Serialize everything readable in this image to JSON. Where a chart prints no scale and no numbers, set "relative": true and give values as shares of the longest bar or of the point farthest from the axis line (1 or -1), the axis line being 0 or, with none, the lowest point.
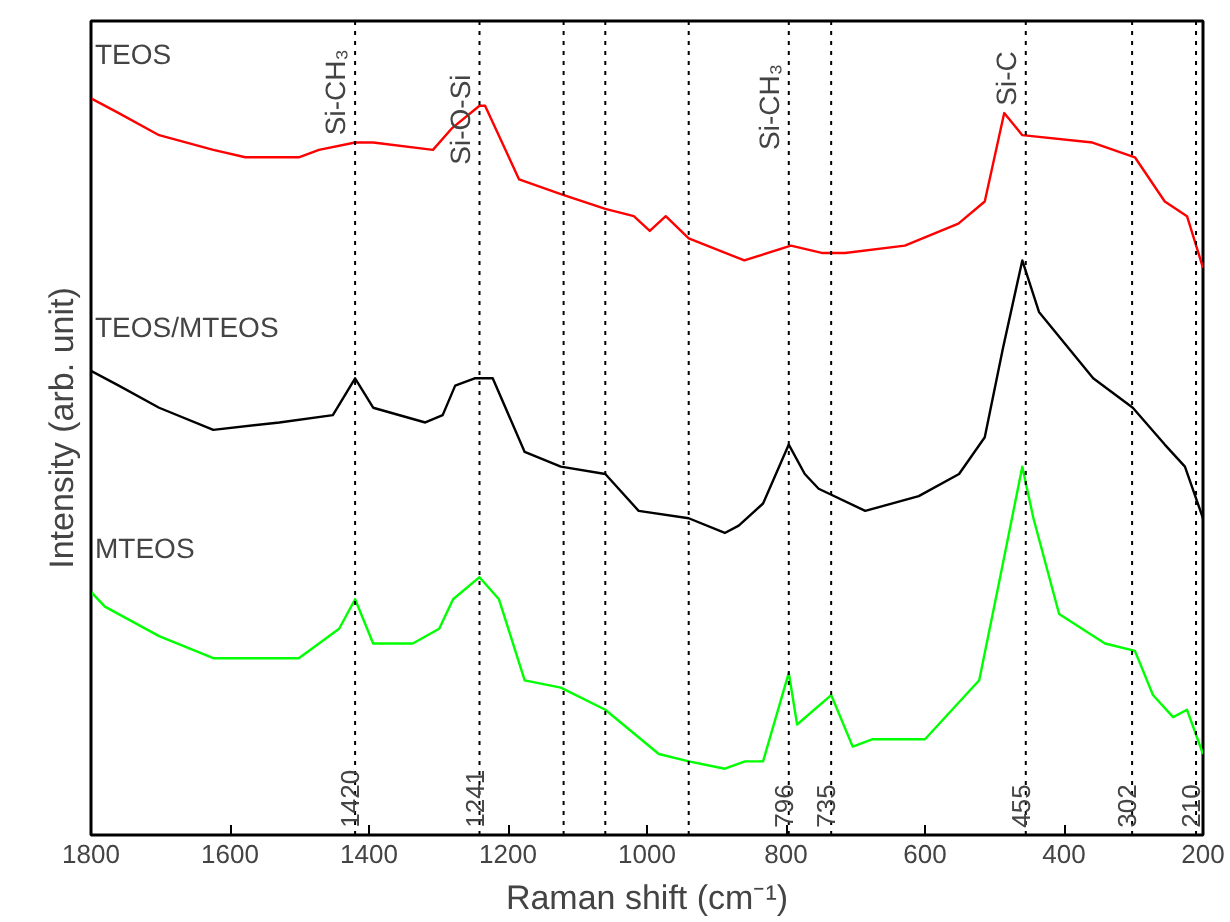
{
  "chart_data": {
    "type": "line",
    "relative": true,
    "xlabel": "Raman shift (cm⁻¹)",
    "ylabel": "Intensity (arb. unit)",
    "xlim": [
      1800,
      200
    ],
    "xticks": [
      1800,
      1600,
      1400,
      1200,
      1000,
      800,
      600,
      400,
      200
    ],
    "grid": false,
    "series": [
      {
        "name": "TEOS",
        "color": "#ff0000",
        "x": [
          1800,
          1760,
          1702,
          1624,
          1578,
          1501,
          1472,
          1420,
          1394,
          1308,
          1280,
          1241,
          1233,
          1184,
          1124,
          1060,
          1019,
          996,
          973,
          940,
          860,
          793,
          747,
          715,
          629,
          552,
          514,
          486,
          460,
          359,
          298,
          255,
          223,
          200
        ],
        "values": [
          1.0,
          0.98,
          0.95,
          0.93,
          0.92,
          0.92,
          0.93,
          0.94,
          0.94,
          0.93,
          0.96,
          0.99,
          0.99,
          0.89,
          0.87,
          0.85,
          0.84,
          0.82,
          0.84,
          0.81,
          0.78,
          0.8,
          0.79,
          0.79,
          0.8,
          0.83,
          0.86,
          0.98,
          0.95,
          0.94,
          0.92,
          0.86,
          0.84,
          0.77
        ]
      },
      {
        "name": "TEOS/MTEOS",
        "color": "#000000",
        "x": [
          1800,
          1760,
          1702,
          1624,
          1529,
          1452,
          1420,
          1394,
          1319,
          1294,
          1276,
          1248,
          1222,
          1176,
          1124,
          1060,
          1012,
          940,
          888,
          868,
          833,
          796,
          773,
          753,
          686,
          609,
          551,
          514,
          488,
          460,
          436,
          358,
          301,
          255,
          226,
          200
        ],
        "values": [
          0.63,
          0.61,
          0.58,
          0.55,
          0.56,
          0.57,
          0.62,
          0.58,
          0.56,
          0.57,
          0.61,
          0.62,
          0.62,
          0.52,
          0.5,
          0.49,
          0.44,
          0.43,
          0.41,
          0.42,
          0.45,
          0.53,
          0.49,
          0.47,
          0.44,
          0.46,
          0.49,
          0.54,
          0.66,
          0.78,
          0.71,
          0.62,
          0.58,
          0.53,
          0.5,
          0.43
        ]
      },
      {
        "name": "MTEOS",
        "color": "#00ff00",
        "x": [
          1800,
          1780,
          1702,
          1624,
          1587,
          1501,
          1443,
          1420,
          1394,
          1337,
          1299,
          1279,
          1241,
          1213,
          1176,
          1124,
          1060,
          983,
          940,
          888,
          859,
          833,
          796,
          784,
          735,
          704,
          675,
          600,
          522,
          494,
          460,
          444,
          407,
          341,
          298,
          272,
          243,
          223,
          200
        ],
        "values": [
          0.33,
          0.31,
          0.27,
          0.24,
          0.24,
          0.24,
          0.28,
          0.32,
          0.26,
          0.26,
          0.28,
          0.32,
          0.35,
          0.32,
          0.21,
          0.2,
          0.17,
          0.11,
          0.1,
          0.09,
          0.1,
          0.1,
          0.22,
          0.15,
          0.19,
          0.12,
          0.13,
          0.13,
          0.21,
          0.34,
          0.5,
          0.43,
          0.3,
          0.26,
          0.25,
          0.19,
          0.16,
          0.17,
          0.11
        ]
      }
    ],
    "ref_lines": [
      {
        "axis": "x",
        "value": 1420,
        "label": "1420",
        "color": "#000000",
        "line_style": "dotted"
      },
      {
        "axis": "x",
        "value": 1241,
        "label": "1241",
        "color": "#000000",
        "line_style": "dotted"
      },
      {
        "axis": "x",
        "value": 1120,
        "label": null,
        "color": "#000000",
        "line_style": "dotted"
      },
      {
        "axis": "x",
        "value": 1060,
        "label": null,
        "color": "#000000",
        "line_style": "dotted"
      },
      {
        "axis": "x",
        "value": 940,
        "label": null,
        "color": "#000000",
        "line_style": "dotted"
      },
      {
        "axis": "x",
        "value": 796,
        "label": "796",
        "color": "#000000",
        "line_style": "dotted"
      },
      {
        "axis": "x",
        "value": 735,
        "label": "735",
        "color": "#000000",
        "line_style": "dotted"
      },
      {
        "axis": "x",
        "value": 455,
        "label": "455",
        "color": "#000000",
        "line_style": "dotted"
      },
      {
        "axis": "x",
        "value": 302,
        "label": "302",
        "color": "#000000",
        "line_style": "dotted"
      },
      {
        "axis": "x",
        "value": 210,
        "label": "210",
        "color": "#000000",
        "line_style": "dotted"
      }
    ],
    "annotations": [
      {
        "text": "Si-CH₃",
        "x": 1420,
        "y": 0.95
      },
      {
        "text": "Si-O-Si",
        "x": 1241,
        "y": 0.91
      },
      {
        "text": "Si-CH₃",
        "x": 796,
        "y": 0.93
      },
      {
        "text": "Si-C",
        "x": 455,
        "y": 0.99
      }
    ]
  }
}
